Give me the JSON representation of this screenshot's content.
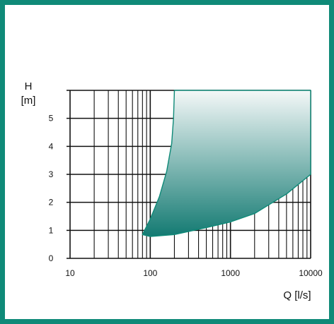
{
  "colors": {
    "frame": "#0f8a78",
    "grid": "#111111",
    "region_top": "#f4f8f8",
    "region_bottom": "#137a72",
    "region_outline": "#0f8a78"
  },
  "chart_data": {
    "type": "area",
    "title": "",
    "xlabel": "Q [l/s]",
    "ylabel_line1": "H",
    "ylabel_line2": "[m]",
    "x_scale": "log",
    "xlim": [
      10,
      10000
    ],
    "ylim": [
      0,
      6
    ],
    "x_ticks": [
      10,
      100,
      1000,
      10000
    ],
    "x_tick_labels": [
      "10",
      "100",
      "1000",
      "10000"
    ],
    "y_ticks": [
      0,
      1,
      2,
      3,
      4,
      5
    ],
    "y_tick_labels": [
      "0",
      "1",
      "2",
      "3",
      "4",
      "5"
    ],
    "grid": true,
    "region": {
      "name": "",
      "boundary": [
        {
          "x": 200,
          "y": 6.0
        },
        {
          "x": 10000,
          "y": 6.0
        },
        {
          "x": 10000,
          "y": 3.0
        },
        {
          "x": 5000,
          "y": 2.3
        },
        {
          "x": 2000,
          "y": 1.6
        },
        {
          "x": 1000,
          "y": 1.3
        },
        {
          "x": 500,
          "y": 1.1
        },
        {
          "x": 200,
          "y": 0.85
        },
        {
          "x": 100,
          "y": 0.78
        },
        {
          "x": 80,
          "y": 0.85
        },
        {
          "x": 85,
          "y": 1.0
        },
        {
          "x": 100,
          "y": 1.4
        },
        {
          "x": 130,
          "y": 2.2
        },
        {
          "x": 160,
          "y": 3.1
        },
        {
          "x": 185,
          "y": 4.1
        },
        {
          "x": 195,
          "y": 5.0
        },
        {
          "x": 200,
          "y": 6.0
        }
      ]
    }
  }
}
